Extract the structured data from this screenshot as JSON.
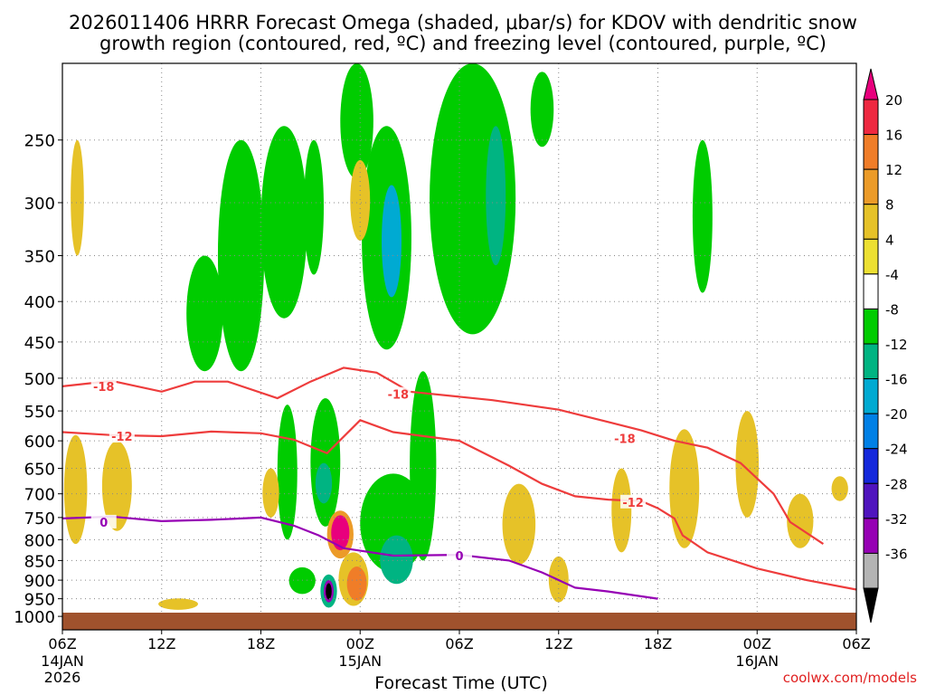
{
  "chart_data": {
    "type": "heatmap",
    "title_line1": "2026011406 HRRR Forecast Omega (shaded, μbar/s) for KDOV with dendritic snow",
    "title_line2": "growth region (contoured, red, ºC) and freezing level (contoured, purple, ºC)",
    "xlabel": "Forecast Time (UTC)",
    "ylabel": "",
    "watermark": "coolwx.com/models",
    "x_ticks": [
      {
        "label": "06Z",
        "sub": [
          "14JAN",
          "2026"
        ],
        "hours": 0
      },
      {
        "label": "12Z",
        "sub": [],
        "hours": 6
      },
      {
        "label": "18Z",
        "sub": [],
        "hours": 12
      },
      {
        "label": "00Z",
        "sub": [
          "15JAN"
        ],
        "hours": 18
      },
      {
        "label": "06Z",
        "sub": [],
        "hours": 24
      },
      {
        "label": "12Z",
        "sub": [],
        "hours": 30
      },
      {
        "label": "18Z",
        "sub": [],
        "hours": 36
      },
      {
        "label": "00Z",
        "sub": [
          "16JAN"
        ],
        "hours": 42
      },
      {
        "label": "06Z",
        "sub": [],
        "hours": 48
      }
    ],
    "y_ticks": [
      250,
      300,
      350,
      400,
      450,
      500,
      550,
      600,
      650,
      700,
      750,
      800,
      850,
      900,
      950,
      1000
    ],
    "xlim_hours": [
      0,
      48
    ],
    "ylim_hPa": [
      200,
      1040
    ],
    "y_scale": "log",
    "grid": true,
    "colorbar": {
      "labels": [
        "20",
        "16",
        "12",
        "8",
        "4",
        "-4",
        "-8",
        "-12",
        "-16",
        "-20",
        "-24",
        "-28",
        "-32",
        "-36"
      ],
      "colors": [
        "#e8007d",
        "#ee2840",
        "#f07d28",
        "#ec9b28",
        "#e6c228",
        "#ede032",
        "#ffffff",
        "#00cc00",
        "#00b482",
        "#00aad2",
        "#0080e6",
        "#1428dc",
        "#5014be",
        "#9600b4",
        "#b4b4b4",
        "#000000"
      ]
    },
    "contours": [
      {
        "label": "-18",
        "color": "#ee3c3c",
        "points": [
          [
            0,
            512
          ],
          [
            3,
            504
          ],
          [
            6,
            520
          ],
          [
            8,
            505
          ],
          [
            10,
            505
          ],
          [
            13,
            530
          ],
          [
            15,
            505
          ],
          [
            17,
            485
          ],
          [
            19,
            492
          ],
          [
            21,
            520
          ],
          [
            26,
            533
          ],
          [
            30,
            548
          ],
          [
            33,
            568
          ],
          [
            35,
            582
          ],
          [
            37,
            600
          ],
          [
            39,
            612
          ],
          [
            41,
            640
          ],
          [
            43,
            700
          ],
          [
            44,
            760
          ],
          [
            46,
            810
          ]
        ]
      },
      {
        "label": "-12",
        "color": "#ee3c3c",
        "points": [
          [
            0,
            585
          ],
          [
            3,
            590
          ],
          [
            6,
            592
          ],
          [
            9,
            584
          ],
          [
            12,
            587
          ],
          [
            14,
            598
          ],
          [
            16,
            622
          ],
          [
            18,
            565
          ],
          [
            20,
            585
          ],
          [
            24,
            600
          ],
          [
            27,
            645
          ],
          [
            29,
            680
          ],
          [
            31,
            705
          ],
          [
            33,
            712
          ],
          [
            35,
            715
          ],
          [
            36,
            730
          ],
          [
            37,
            752
          ],
          [
            37.5,
            790
          ],
          [
            39,
            830
          ],
          [
            42,
            870
          ],
          [
            45,
            900
          ],
          [
            48,
            925
          ]
        ]
      },
      {
        "label": "0",
        "color": "#9600b4",
        "points": [
          [
            0,
            752
          ],
          [
            3,
            748
          ],
          [
            6,
            758
          ],
          [
            9,
            755
          ],
          [
            12,
            750
          ],
          [
            14,
            768
          ],
          [
            15.5,
            790
          ],
          [
            17,
            820
          ],
          [
            20,
            838
          ],
          [
            24,
            836
          ],
          [
            27,
            850
          ],
          [
            29,
            880
          ],
          [
            31,
            920
          ],
          [
            33,
            930
          ],
          [
            36,
            950
          ]
        ]
      }
    ],
    "contour_labels": [
      {
        "text": "-18",
        "hours": 2.5,
        "hPa": 512,
        "color": "#ee3c3c"
      },
      {
        "text": "-18",
        "hours": 20.3,
        "hPa": 524,
        "color": "#ee3c3c"
      },
      {
        "text": "-18",
        "hours": 34.0,
        "hPa": 596,
        "color": "#ee3c3c"
      },
      {
        "text": "-12",
        "hours": 3.6,
        "hPa": 592,
        "color": "#ee3c3c"
      },
      {
        "text": "-12",
        "hours": 34.5,
        "hPa": 717,
        "color": "#ee3c3c"
      },
      {
        "text": "0",
        "hours": 2.5,
        "hPa": 760,
        "color": "#9600b4"
      },
      {
        "text": "0",
        "hours": 24.0,
        "hPa": 838,
        "color": "#9600b4"
      }
    ],
    "omega_cells": [
      {
        "hours": 10.8,
        "hPa": 370,
        "rx": 1.4,
        "ry": 120,
        "color": "#00cc00"
      },
      {
        "hours": 8.6,
        "hPa": 420,
        "rx": 1.1,
        "ry": 70,
        "color": "#00cc00"
      },
      {
        "hours": 13.4,
        "hPa": 330,
        "rx": 1.4,
        "ry": 90,
        "color": "#00cc00"
      },
      {
        "hours": 17.8,
        "hPa": 240,
        "rx": 1.0,
        "ry": 40,
        "color": "#00cc00"
      },
      {
        "hours": 15.2,
        "hPa": 310,
        "rx": 0.6,
        "ry": 60,
        "color": "#00cc00"
      },
      {
        "hours": 19.6,
        "hPa": 350,
        "rx": 1.5,
        "ry": 110,
        "color": "#00cc00"
      },
      {
        "hours": 19.9,
        "hPa": 340,
        "rx": 0.6,
        "ry": 55,
        "color": "#00aad2"
      },
      {
        "hours": 24.8,
        "hPa": 320,
        "rx": 2.6,
        "ry": 120,
        "color": "#00cc00"
      },
      {
        "hours": 26.2,
        "hPa": 300,
        "rx": 0.6,
        "ry": 60,
        "color": "#00b482"
      },
      {
        "hours": 29.0,
        "hPa": 230,
        "rx": 0.7,
        "ry": 25,
        "color": "#00cc00"
      },
      {
        "hours": 38.7,
        "hPa": 320,
        "rx": 0.6,
        "ry": 70,
        "color": "#00cc00"
      },
      {
        "hours": 21.8,
        "hPa": 670,
        "rx": 0.8,
        "ry": 180,
        "color": "#00cc00"
      },
      {
        "hours": 15.9,
        "hPa": 650,
        "rx": 0.9,
        "ry": 120,
        "color": "#00cc00"
      },
      {
        "hours": 15.8,
        "hPa": 680,
        "rx": 0.5,
        "ry": 40,
        "color": "#00b482"
      },
      {
        "hours": 13.6,
        "hPa": 670,
        "rx": 0.6,
        "ry": 130,
        "color": "#00cc00"
      },
      {
        "hours": 14.5,
        "hPa": 902,
        "rx": 0.8,
        "ry": 35,
        "color": "#00cc00"
      },
      {
        "hours": 20.0,
        "hPa": 770,
        "rx": 2.0,
        "ry": 110,
        "color": "#00cc00"
      },
      {
        "hours": 20.2,
        "hPa": 850,
        "rx": 1.0,
        "ry": 60,
        "color": "#00b482"
      },
      {
        "hours": 16.1,
        "hPa": 930,
        "rx": 0.5,
        "ry": 45,
        "color": "#00b482"
      },
      {
        "hours": 16.1,
        "hPa": 930,
        "rx": 0.3,
        "ry": 30,
        "color": "#9600b4"
      },
      {
        "hours": 16.1,
        "hPa": 930,
        "rx": 0.18,
        "ry": 22,
        "color": "#000000"
      },
      {
        "hours": 16.8,
        "hPa": 790,
        "rx": 0.8,
        "ry": 55,
        "color": "#ec9b28"
      },
      {
        "hours": 16.8,
        "hPa": 785,
        "rx": 0.55,
        "ry": 40,
        "color": "#e8007d"
      },
      {
        "hours": 17.6,
        "hPa": 900,
        "rx": 0.9,
        "ry": 70,
        "color": "#e6c228"
      },
      {
        "hours": 17.8,
        "hPa": 910,
        "rx": 0.6,
        "ry": 45,
        "color": "#f07d28"
      },
      {
        "hours": 18.0,
        "hPa": 300,
        "rx": 0.6,
        "ry": 35,
        "color": "#e6c228"
      },
      {
        "hours": 0.8,
        "hPa": 700,
        "rx": 0.7,
        "ry": 110,
        "color": "#e6c228"
      },
      {
        "hours": 0.9,
        "hPa": 300,
        "rx": 0.4,
        "ry": 50,
        "color": "#e6c228"
      },
      {
        "hours": 3.3,
        "hPa": 690,
        "rx": 0.9,
        "ry": 90,
        "color": "#e6c228"
      },
      {
        "hours": 12.6,
        "hPa": 700,
        "rx": 0.5,
        "ry": 50,
        "color": "#e6c228"
      },
      {
        "hours": 27.6,
        "hPa": 770,
        "rx": 1.0,
        "ry": 90,
        "color": "#e6c228"
      },
      {
        "hours": 30.0,
        "hPa": 900,
        "rx": 0.6,
        "ry": 60,
        "color": "#e6c228"
      },
      {
        "hours": 33.8,
        "hPa": 740,
        "rx": 0.6,
        "ry": 90,
        "color": "#e6c228"
      },
      {
        "hours": 37.6,
        "hPa": 700,
        "rx": 0.9,
        "ry": 120,
        "color": "#e6c228"
      },
      {
        "hours": 41.4,
        "hPa": 650,
        "rx": 0.7,
        "ry": 100,
        "color": "#e6c228"
      },
      {
        "hours": 44.6,
        "hPa": 760,
        "rx": 0.8,
        "ry": 60,
        "color": "#e6c228"
      },
      {
        "hours": 47.0,
        "hPa": 690,
        "rx": 0.5,
        "ry": 25,
        "color": "#e6c228"
      },
      {
        "hours": 7.0,
        "hPa": 965,
        "rx": 1.2,
        "ry": 16,
        "color": "#e6c228"
      }
    ],
    "ground_color": "#a0522d"
  }
}
